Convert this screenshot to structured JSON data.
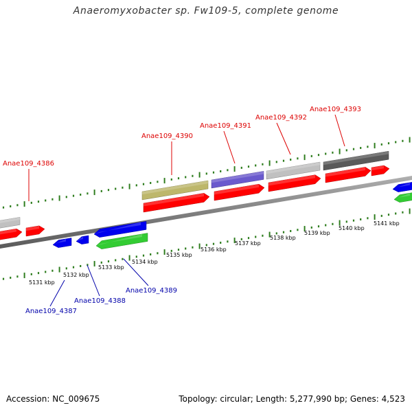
{
  "title": "Anaeromyxobacter sp. Fw109-5, complete genome",
  "footer": {
    "accession": "Accession: NC_009675",
    "stats": "Topology: circular; Length: 5,277,990 bp; Genes: 4,523"
  },
  "colors": {
    "forward_label": "#dd0000",
    "reverse_label": "#0000aa",
    "tick_marks": "#2e7d1e",
    "backbone": "#808080",
    "cds": "#ff0000",
    "blue_feature": "#0000ee",
    "green_feature": "#33cc33",
    "olive_feature": "#bdb76b",
    "slate_feature": "#6a5acd",
    "silver_feature": "#c0c0c0",
    "dimgray_feature": "#5a5a5a"
  },
  "chart_data": {
    "type": "genome-map",
    "scale_unit": "kbp",
    "scale_labels": [
      "5131 kbp",
      "5132 kbp",
      "5133 kbp",
      "5134 kbp",
      "5135 kbp",
      "5136 kbp",
      "5137 kbp",
      "5138 kbp",
      "5139 kbp",
      "5140 kbp",
      "5141 kbp"
    ],
    "forward_genes": [
      "Anae109_4386",
      "Anae109_4390",
      "Anae109_4391",
      "Anae109_4392",
      "Anae109_4393"
    ],
    "reverse_genes": [
      "Anae109_4387",
      "Anae109_4388",
      "Anae109_4389"
    ]
  }
}
